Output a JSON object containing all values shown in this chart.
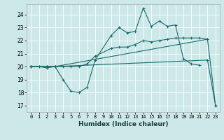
{
  "xlabel": "Humidex (Indice chaleur)",
  "bg_color": "#cce8e8",
  "grid_color": "#ffffff",
  "line_color": "#1a6b6b",
  "xlim": [
    -0.5,
    23.5
  ],
  "ylim": [
    16.5,
    24.8
  ],
  "xticks": [
    0,
    1,
    2,
    3,
    4,
    5,
    6,
    7,
    8,
    9,
    10,
    11,
    12,
    13,
    14,
    15,
    16,
    17,
    18,
    19,
    20,
    21,
    22,
    23
  ],
  "yticks": [
    17,
    18,
    19,
    20,
    21,
    22,
    23,
    24
  ],
  "line1_x": [
    0,
    1,
    2,
    3,
    4,
    5,
    6,
    7,
    8,
    10,
    11,
    12,
    13,
    14,
    15,
    16,
    17,
    18,
    19,
    20,
    21
  ],
  "line1_y": [
    20,
    20,
    19.9,
    20,
    19,
    18.1,
    18,
    18.4,
    20.5,
    22.4,
    23,
    22.6,
    22.7,
    24.5,
    23.1,
    23.5,
    23.1,
    23.2,
    20.6,
    20.2,
    20.1
  ],
  "line2_x": [
    0,
    1,
    2,
    3,
    4,
    5,
    6,
    7,
    8,
    10,
    11,
    12,
    13,
    14,
    15,
    16,
    17,
    18,
    19,
    20,
    21,
    22
  ],
  "line2_y": [
    20,
    20,
    20,
    20,
    20,
    20,
    20,
    20.2,
    20.8,
    21.4,
    21.5,
    21.5,
    21.7,
    22,
    21.9,
    22,
    22.1,
    22.2,
    22.2,
    22.2,
    22.2,
    22.1
  ],
  "line3_x": [
    0,
    2,
    3,
    22,
    23
  ],
  "line3_y": [
    20,
    20,
    20,
    22.1,
    17.0
  ],
  "line4_x": [
    0,
    2,
    3,
    22,
    23
  ],
  "line4_y": [
    20,
    20,
    20,
    20.5,
    17.0
  ]
}
